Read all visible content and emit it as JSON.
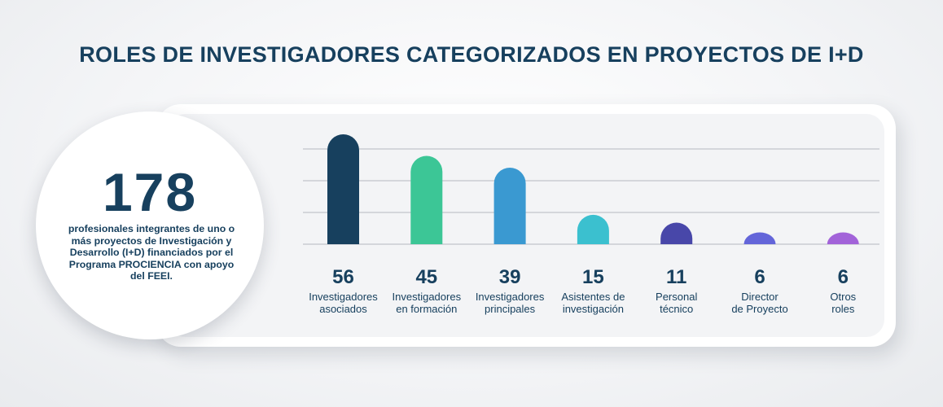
{
  "title": "ROLES DE INVESTIGADORES CATEGORIZADOS EN PROYECTOS DE I+D",
  "summary": {
    "number": "178",
    "description": "profesionales integrantes de uno o más proyectos de Investigación y Desarrollo (I+D) financiados por el Programa PROCIENCIA con apoyo del FEEI."
  },
  "chart_data": {
    "type": "bar",
    "categories": [
      [
        "Investigadores",
        "asociados"
      ],
      [
        "Investigadores",
        "en formación"
      ],
      [
        "Investigadores",
        "principales"
      ],
      [
        "Asistentes de",
        "investigación"
      ],
      [
        "Personal",
        "técnico"
      ],
      [
        "Director",
        "de Proyecto"
      ],
      [
        "Otros",
        "roles"
      ]
    ],
    "values": [
      56,
      45,
      39,
      15,
      11,
      6,
      6
    ],
    "colors": [
      "#17405e",
      "#3cc696",
      "#3a99d1",
      "#3bc0cf",
      "#4847a9",
      "#6365d9",
      "#a263d9"
    ],
    "grid": true,
    "xlabel": "",
    "ylabel": ""
  }
}
